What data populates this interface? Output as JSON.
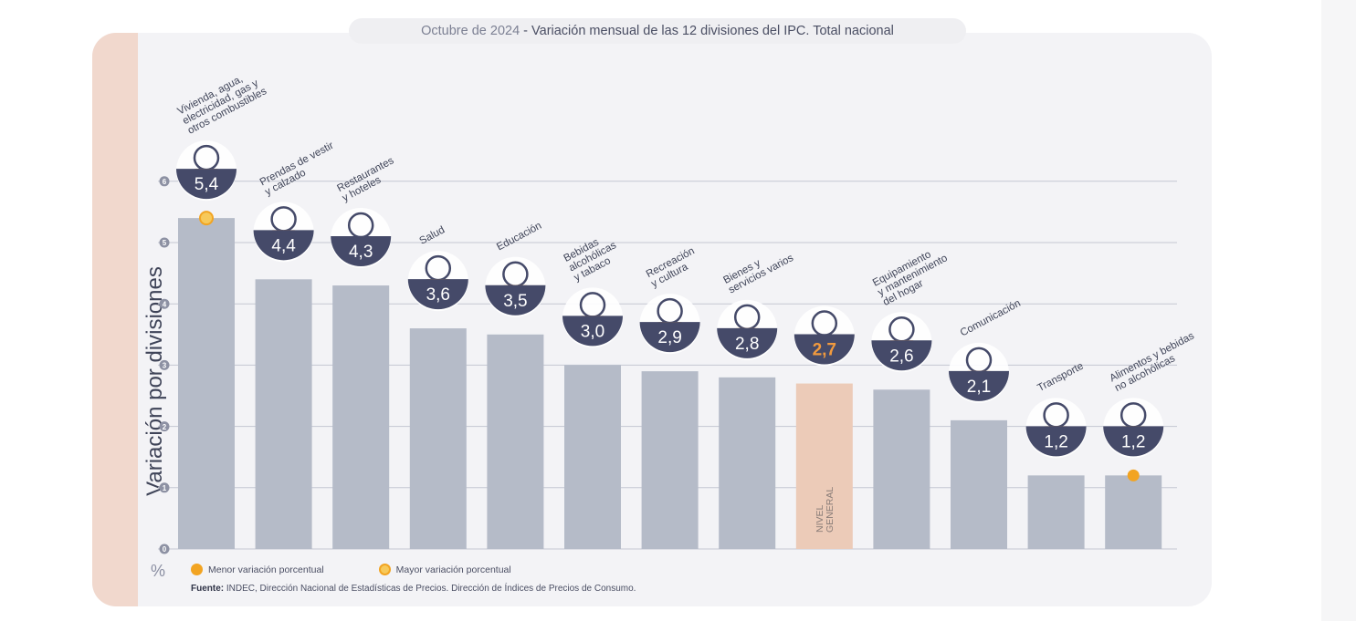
{
  "title": {
    "date": "Octubre de 2024",
    "separator": " - ",
    "text": "Variación mensual de las 12 divisiones del IPC. Total nacional"
  },
  "colors": {
    "bar": "#b5bbc8",
    "general_bar": "#eccbb8",
    "badge": "#454a69",
    "badge_text": "#ffffff",
    "general_value": "#f19a3e",
    "band": "#f1d8cd",
    "card": "#f3f3f6",
    "marker": "#f2a422",
    "marker_fill": "#f7c95a"
  },
  "chart_data": {
    "type": "bar",
    "ylabel": "Variación por divisiones",
    "unit": "%",
    "ylim": [
      0,
      6
    ],
    "yticks": [
      "0",
      "1",
      "2",
      "3",
      "4",
      "5",
      "6"
    ],
    "grid": true,
    "categories": [
      "Vivienda, agua, electricidad, gas y otros combustibles",
      "Prendas de vestir y calzado",
      "Restaurantes y hoteles",
      "Salud",
      "Educación",
      "Bebidas alcohólicas y tabaco",
      "Recreación y cultura",
      "Bienes y servicios varios",
      "Nivel general",
      "Equipamiento y mantenimiento del hogar",
      "Comunicación",
      "Transporte",
      "Alimentos y bebidas no alcohólicas"
    ],
    "category_lines": [
      [
        "Vivienda, agua,",
        "electricidad, gas y",
        "otros combustibles"
      ],
      [
        "Prendas de vestir",
        "y calzado"
      ],
      [
        "Restaurantes",
        "y hoteles"
      ],
      [
        "Salud"
      ],
      [
        "Educación"
      ],
      [
        "Bebidas",
        "alcohólicas",
        "y tabaco"
      ],
      [
        "Recreación",
        "y cultura"
      ],
      [
        "Bienes y",
        "servicios varios"
      ],
      [],
      [
        "Equipamiento",
        "y mantenimiento",
        "del hogar"
      ],
      [
        "Comunicación"
      ],
      [
        "Transporte"
      ],
      [
        "Alimentos y bebidas",
        "no alcohólicas"
      ]
    ],
    "values": [
      5.4,
      4.4,
      4.3,
      3.6,
      3.5,
      3.0,
      2.9,
      2.8,
      2.7,
      2.6,
      2.1,
      1.2,
      1.2
    ],
    "value_labels": [
      "5,4",
      "4,4",
      "4,3",
      "3,6",
      "3,5",
      "3,0",
      "2,9",
      "2,8",
      "2,7",
      "2,6",
      "2,1",
      "1,2",
      "1,2"
    ],
    "icons": [
      "house-utilities-icon",
      "clothing-icon",
      "restaurant-icon",
      "health-cross-icon",
      "education-notebook-icon",
      "drinks-tobacco-icon",
      "recreation-umbrella-icon",
      "misc-goods-icon",
      "shopping-basket-icon",
      "home-appliance-icon",
      "phone-icon",
      "transport-bus-icon",
      "food-chicken-icon"
    ],
    "general_index": 8,
    "general_bar_label": [
      "NIVEL",
      "GENERAL"
    ],
    "max_marker_index": 0,
    "min_marker_index": 12
  },
  "legend": {
    "min_label": "Menor variación porcentual",
    "max_label": "Mayor variación porcentual"
  },
  "source": {
    "label": "Fuente:",
    "text": " INDEC, Dirección Nacional de Estadísticas de Precios. Dirección de Índices de Precios de Consumo."
  }
}
